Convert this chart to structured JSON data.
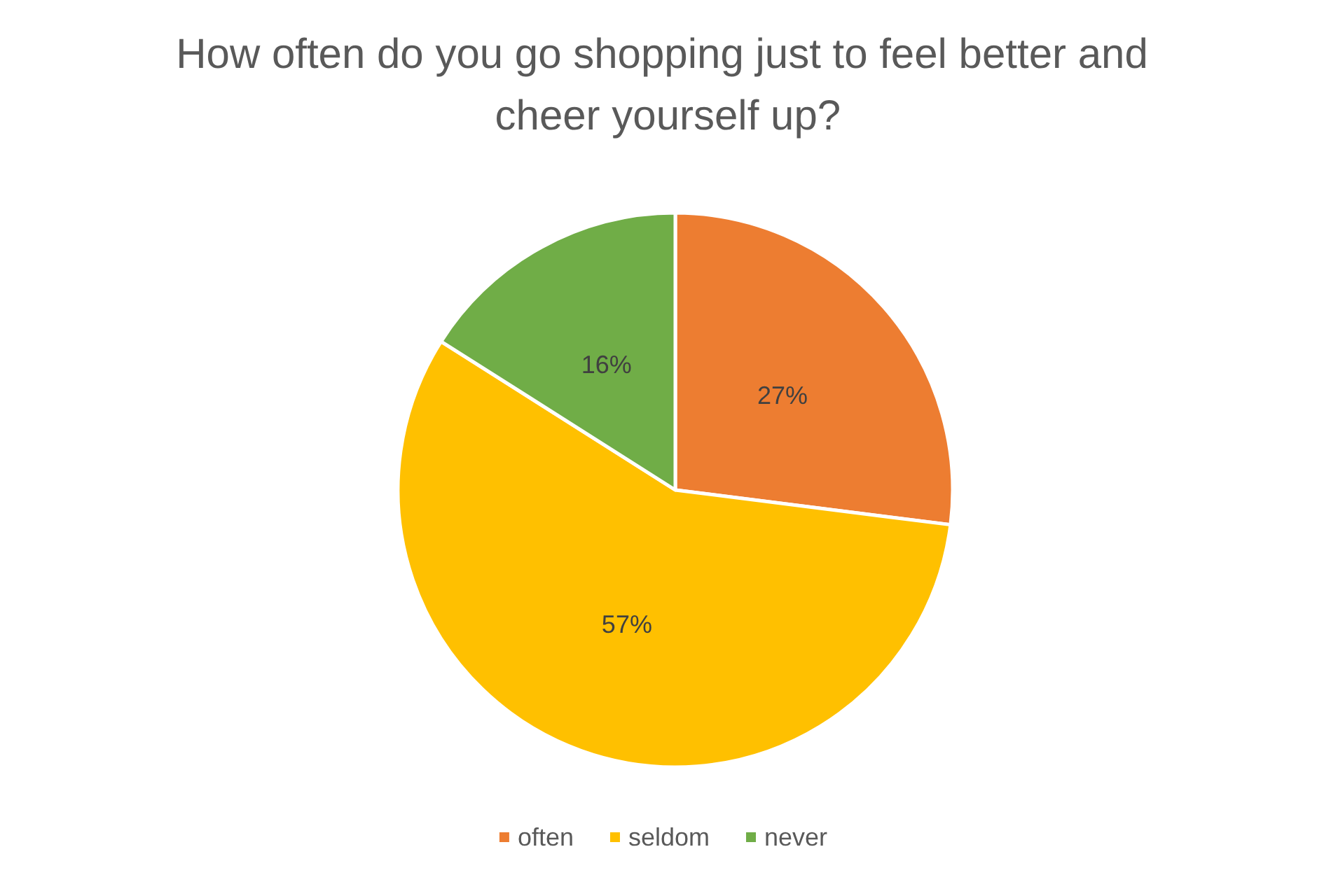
{
  "chart_data": {
    "type": "pie",
    "title": "How often do you go shopping just to feel better and cheer yourself up?",
    "categories": [
      "often",
      "seldom",
      "never"
    ],
    "values": [
      27,
      57,
      16
    ],
    "colors": [
      "#ed7d31",
      "#ffc000",
      "#70ad47"
    ],
    "value_labels": [
      "27%",
      "57%",
      "16%"
    ],
    "legend": "bottom"
  }
}
